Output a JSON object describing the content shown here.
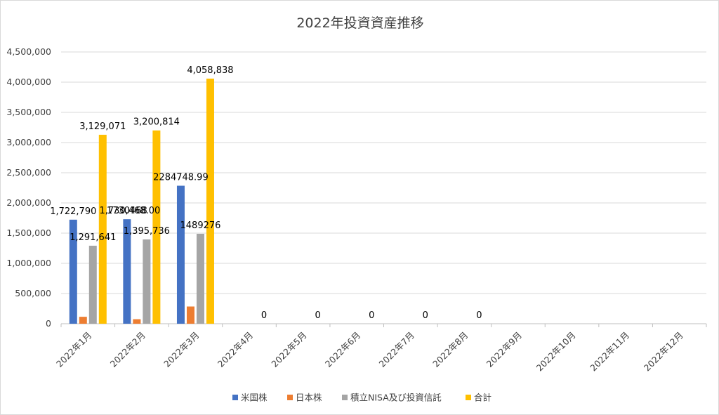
{
  "chart_data": {
    "type": "bar",
    "title": "2022年投資資産推移",
    "xlabel": "",
    "ylabel": "",
    "ylim": [
      0,
      4500000
    ],
    "yticks": [
      "0",
      "500,000",
      "1,000,000",
      "1,500,000",
      "2,000,000",
      "2,500,000",
      "3,000,000",
      "3,500,000",
      "4,000,000",
      "4,500,000"
    ],
    "ytick_values": [
      0,
      500000,
      1000000,
      1500000,
      2000000,
      2500000,
      3000000,
      3500000,
      4000000,
      4500000
    ],
    "grid": true,
    "legend_position": "bottom",
    "categories": [
      "2022年1月",
      "2022年2月",
      "2022年3月",
      "2022年4月",
      "2022年5月",
      "2022年6月",
      "2022年7月",
      "2022年8月",
      "2022年9月",
      "2022年10月",
      "2022年11月",
      "2022年12月"
    ],
    "series": [
      {
        "name": "米国株",
        "color": "#4472c4",
        "values": [
          1722790,
          1730468,
          2284748.99,
          null,
          null,
          null,
          null,
          null,
          null,
          null,
          null,
          null
        ],
        "labels": [
          "1,722,790",
          "1730468",
          "2284748.99",
          "",
          "",
          "",
          "",
          "",
          "",
          "",
          "",
          ""
        ]
      },
      {
        "name": "日本株",
        "color": "#ed7d31",
        "values": [
          114640,
          74600,
          284813,
          null,
          null,
          null,
          null,
          null,
          null,
          null,
          null,
          null
        ],
        "labels": [
          "",
          "",
          "",
          "",
          "",
          "",
          "",
          "",
          "",
          "",
          "",
          ""
        ]
      },
      {
        "name": "積立NISA及び投資信託",
        "color": "#a5a5a5",
        "values": [
          1291641,
          1395736,
          1489276,
          null,
          null,
          null,
          null,
          null,
          null,
          null,
          null,
          null
        ],
        "labels": [
          "1,291,641",
          "1,395,736",
          "1489276",
          "",
          "",
          "",
          "",
          "",
          "",
          "",
          "",
          ""
        ]
      },
      {
        "name": "合計",
        "color": "#ffc000",
        "values": [
          3129071,
          3200814,
          4058838,
          0,
          0,
          0,
          0,
          0,
          null,
          null,
          null,
          null
        ],
        "labels": [
          "3,129,071",
          "3,200,814",
          "4,058,838",
          "0",
          "0",
          "0",
          "0",
          "0",
          "",
          "",
          "",
          ""
        ]
      }
    ],
    "overlap_label_feb": "1,730,468.00"
  },
  "colors": {
    "grid": "#d9d9d9",
    "axis": "#bfbfbf",
    "text": "#404040"
  }
}
